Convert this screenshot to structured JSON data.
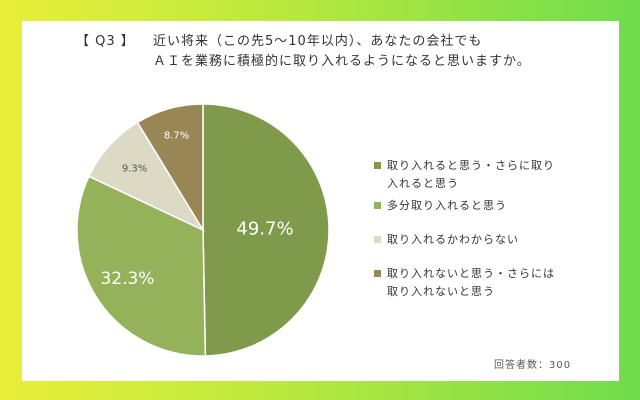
{
  "question": {
    "label": "【 Q3 】",
    "line1": "近い将来（この先5～10年以内）、あなたの会社でも",
    "line2": "ＡＩを業務に積極的に取り入れるようになると思いますか。"
  },
  "respondents_note": "回答者数：300",
  "colors": {
    "frame_left": "#e9ef3a",
    "frame_right": "#6fdc4d",
    "slice_1": "#7f9a4a",
    "slice_2": "#93b25a",
    "slice_3": "#dcd9c5",
    "slice_4": "#988654"
  },
  "chart_data": {
    "type": "pie",
    "title": "",
    "categories": [
      "取り入れると思う・さらに取り入れると思う",
      "多分取り入れると思う",
      "取り入れるかわからない",
      "取り入れないと思う・さらには取り入れないと思う"
    ],
    "values": [
      49.7,
      32.3,
      9.3,
      8.7
    ],
    "data_labels": [
      "49.7%",
      "32.3%",
      "9.3%",
      "8.7%"
    ],
    "colors": [
      "#7f9a4a",
      "#93b25a",
      "#dcd9c5",
      "#988654"
    ],
    "start_angle": "12 o'clock",
    "direction": "clockwise",
    "legend_position": "right"
  },
  "legend": {
    "items": [
      {
        "line1": "取り入れると思う・さらに取り",
        "line2": "入れると思う"
      },
      {
        "line1": "多分取り入れると思う",
        "line2": ""
      },
      {
        "line1": "取り入れるかわからない",
        "line2": ""
      },
      {
        "line1": "取り入れないと思う・さらには",
        "line2": "取り入れないと思う"
      }
    ]
  }
}
